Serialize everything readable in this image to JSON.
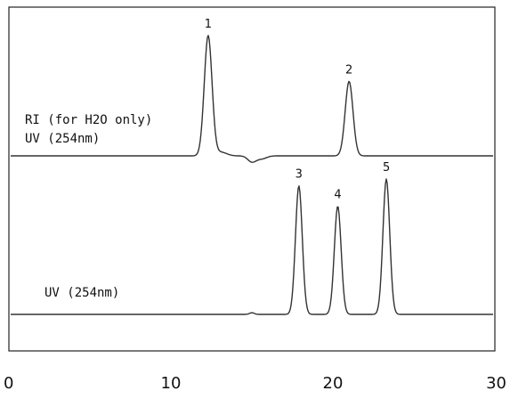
{
  "chart_data": {
    "type": "line",
    "title": "",
    "xlabel": "",
    "ylabel": "",
    "xlim": [
      0,
      30
    ],
    "x_ticks": [
      0,
      10,
      20,
      30
    ],
    "grid": false,
    "traces": [
      {
        "id": "upper",
        "labels": [
          "RI (for H2O only)",
          "UV (254nm)"
        ],
        "peaks": [
          {
            "label": "1",
            "retention_time": 12.3,
            "relative_height": 1.0
          },
          {
            "label": "2",
            "retention_time": 21.0,
            "relative_height": 0.62
          }
        ]
      },
      {
        "id": "lower",
        "labels": [
          "UV (254nm)"
        ],
        "peaks": [
          {
            "label": "3",
            "retention_time": 17.9,
            "relative_height": 0.95
          },
          {
            "label": "4",
            "retention_time": 20.3,
            "relative_height": 0.8
          },
          {
            "label": "5",
            "retention_time": 23.3,
            "relative_height": 1.0
          }
        ]
      }
    ]
  }
}
